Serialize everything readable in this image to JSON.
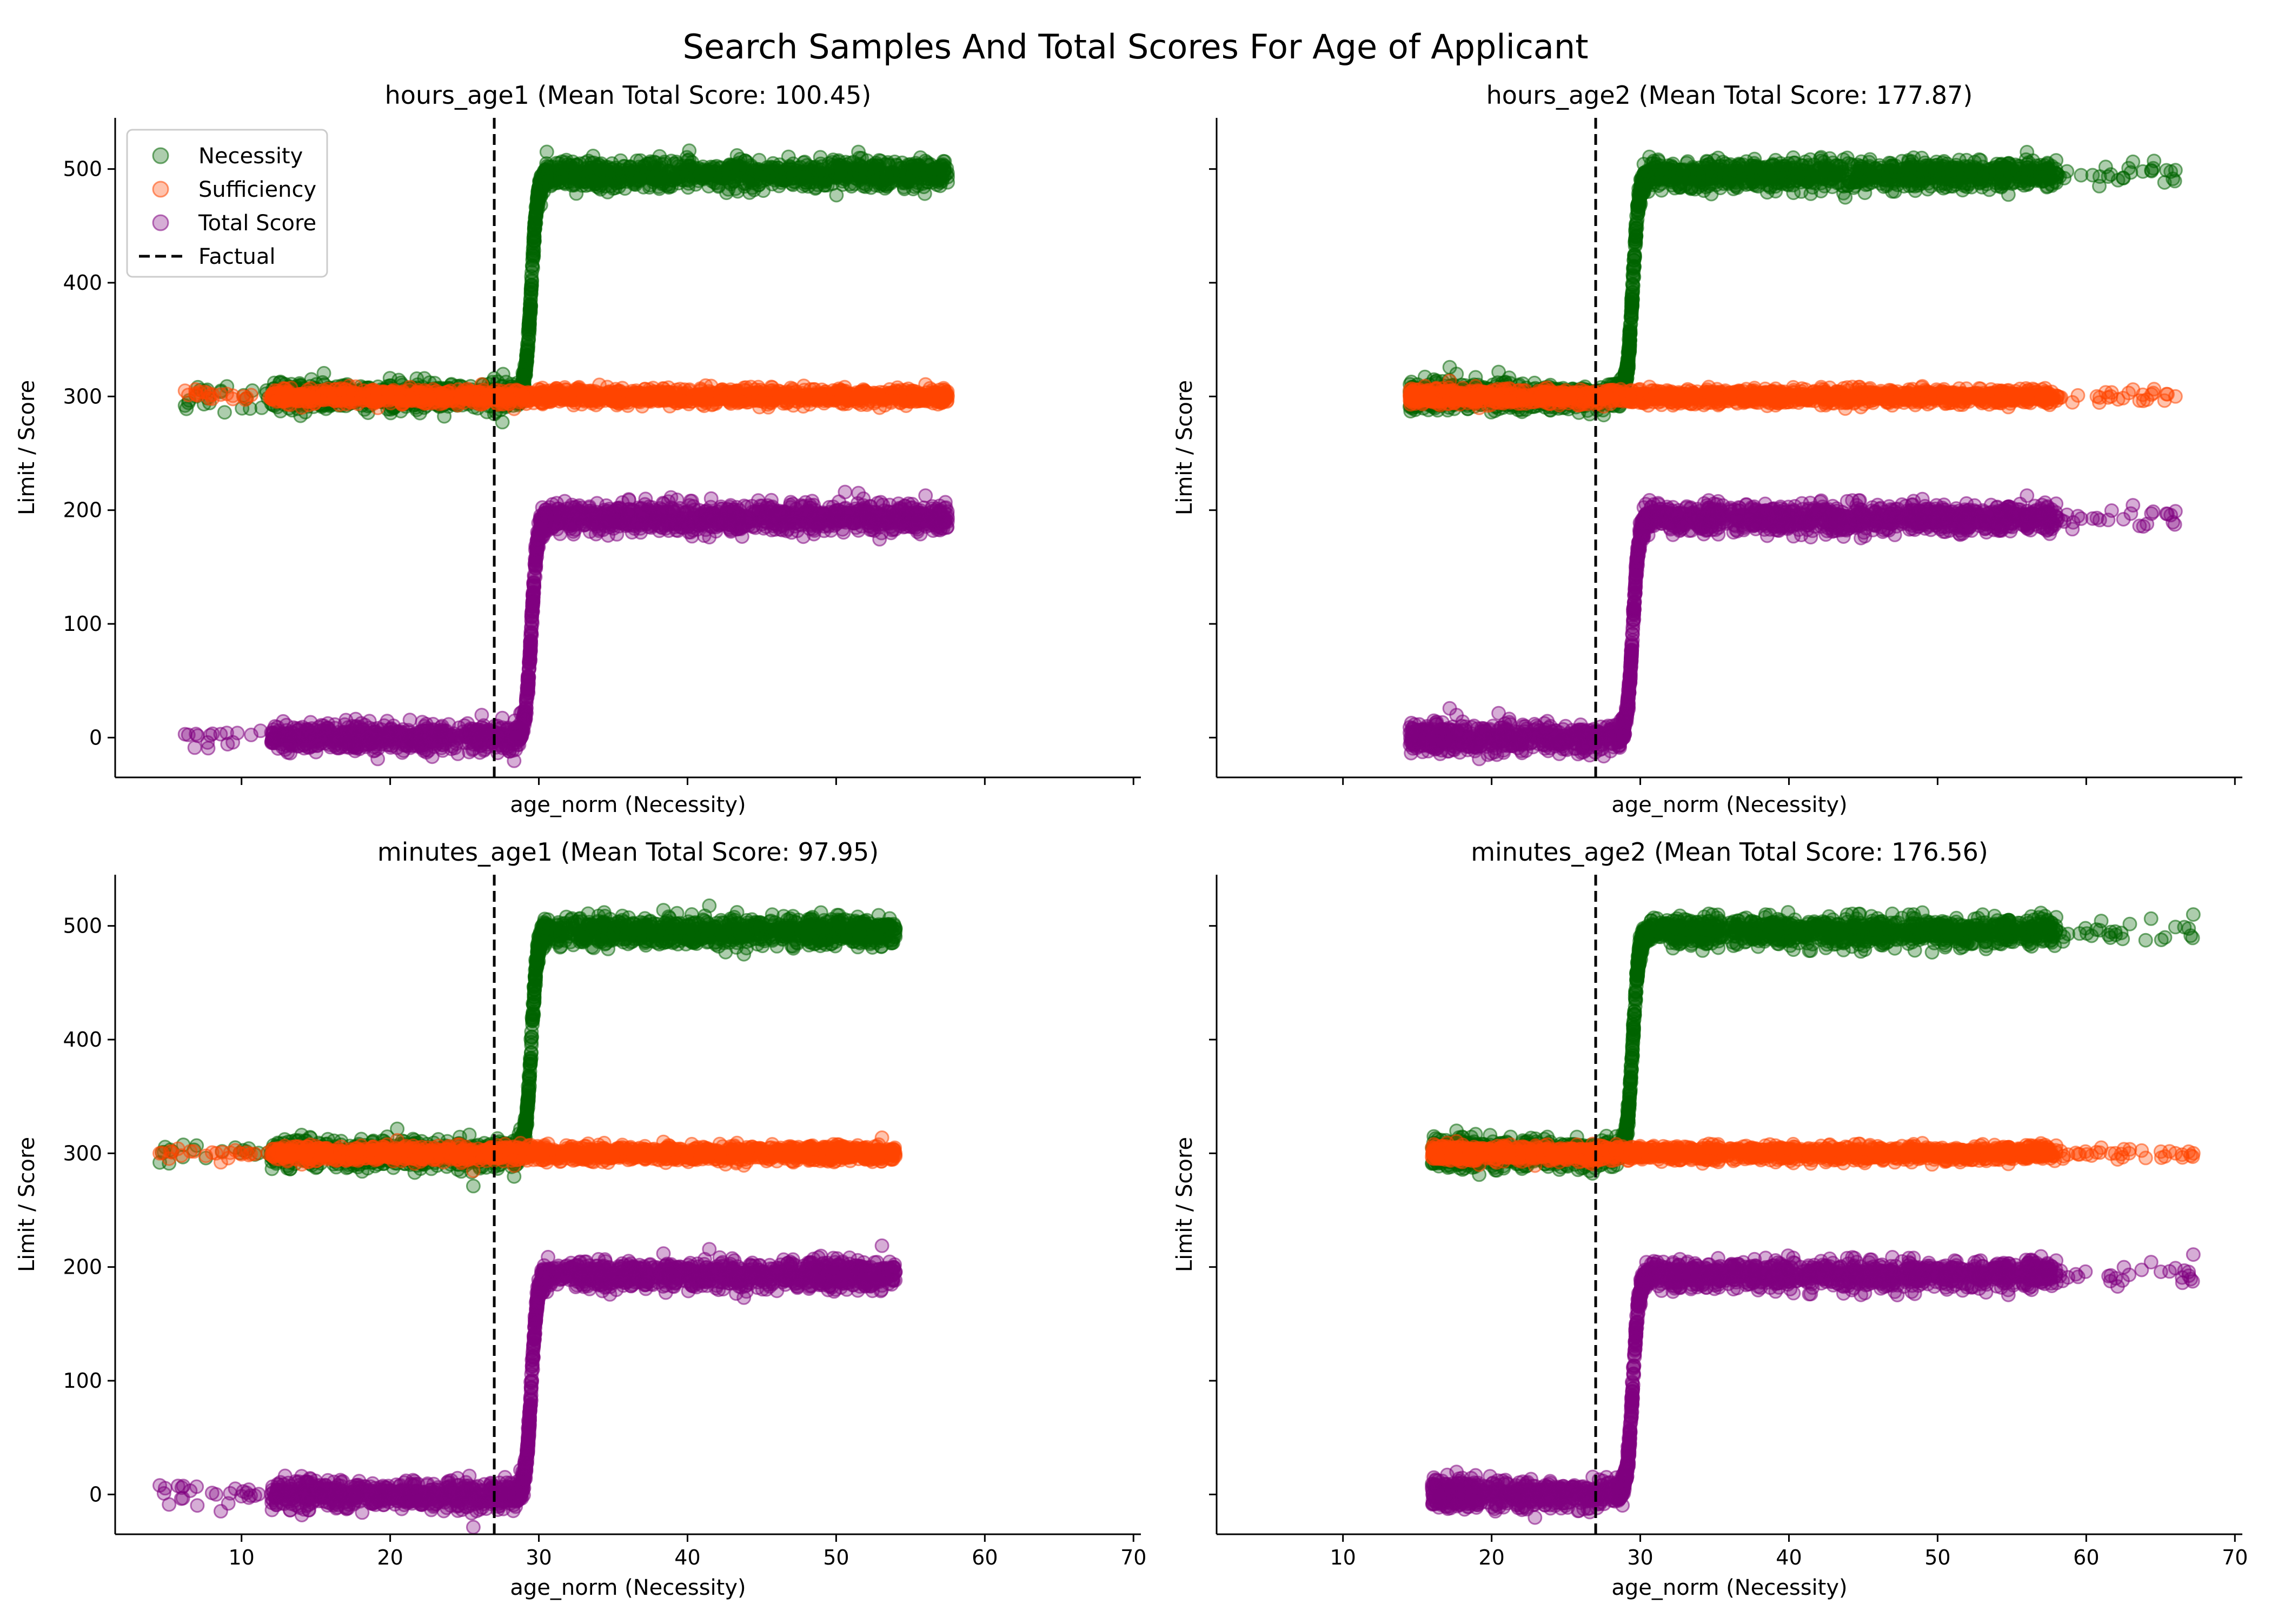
{
  "figure": {
    "title": "Search Samples And Total Scores For Age of Applicant"
  },
  "colors": {
    "necessity": "#006400",
    "sufficiency": "#FF4500",
    "total": "#800080",
    "factual": "#000000"
  },
  "chart_data": [
    {
      "type": "scatter",
      "title": "hours_age1 (Mean Total Score: 100.45)",
      "xlabel": "age_norm (Necessity)",
      "ylabel": "Limit / Score",
      "xlim": [
        1.5,
        70.5
      ],
      "ylim": [
        -35,
        545
      ],
      "xticks": [
        10,
        20,
        30,
        40,
        50,
        60,
        70
      ],
      "yticks": [
        0,
        100,
        200,
        300,
        400,
        500
      ],
      "x_tick_labels_shown": false,
      "factual_x": 27,
      "legend": {
        "position": "top-left",
        "entries": [
          "Necessity",
          "Sufficiency",
          "Total Score",
          "Factual"
        ]
      },
      "series": [
        {
          "name": "Necessity",
          "low_level": 300,
          "high_level": 495,
          "x_min": 6.2,
          "x_max": 57.5,
          "transition_start": 28.5,
          "transition_end": 30.5,
          "outliers": [
            [
              51.5,
              515
            ],
            [
              52.3,
              502
            ],
            [
              53.0,
              507
            ],
            [
              57.5,
              493
            ],
            [
              6.2,
              292
            ]
          ]
        },
        {
          "name": "Sufficiency",
          "level": 300,
          "x_min": 6.2,
          "x_max": 57.5,
          "outliers": [
            [
              6.2,
              305
            ],
            [
              57.5,
              300
            ]
          ]
        },
        {
          "name": "Total Score",
          "low_level": 0,
          "high_level": 193,
          "x_min": 6.2,
          "x_max": 57.5,
          "transition_start": 28.5,
          "transition_end": 30.5,
          "outliers": [
            [
              6.2,
              3
            ],
            [
              51.5,
              215
            ],
            [
              52.3,
              203
            ],
            [
              53.0,
              207
            ],
            [
              57.5,
              193
            ]
          ]
        }
      ]
    },
    {
      "type": "scatter",
      "title": "hours_age2 (Mean Total Score: 177.87)",
      "xlabel": "age_norm (Necessity)",
      "ylabel": "Limit / Score",
      "xlim": [
        1.5,
        70.5
      ],
      "ylim": [
        -35,
        545
      ],
      "xticks": [
        10,
        20,
        30,
        40,
        50,
        60,
        70
      ],
      "yticks": [
        0,
        100,
        200,
        300,
        400,
        500
      ],
      "x_tick_labels_shown": false,
      "factual_x": 27,
      "legend": null,
      "series": [
        {
          "name": "Necessity",
          "low_level": 300,
          "high_level": 495,
          "x_min": 14.5,
          "x_max": 66.0,
          "transition_start": 28.5,
          "transition_end": 30.5,
          "outliers": [
            [
              63.0,
              497
            ],
            [
              66.0,
              499
            ],
            [
              62.5,
              492
            ],
            [
              14.5,
              291
            ]
          ]
        },
        {
          "name": "Sufficiency",
          "level": 300,
          "x_min": 14.5,
          "x_max": 66.0,
          "outliers": [
            [
              14.5,
              300
            ],
            [
              66.0,
              300
            ]
          ]
        },
        {
          "name": "Total Score",
          "low_level": 0,
          "high_level": 193,
          "x_min": 14.5,
          "x_max": 66.0,
          "transition_start": 28.5,
          "transition_end": 30.5,
          "outliers": [
            [
              14.5,
              9
            ],
            [
              63.0,
              197
            ],
            [
              66.0,
              199
            ],
            [
              62.5,
              192
            ]
          ]
        }
      ]
    },
    {
      "type": "scatter",
      "title": "minutes_age1 (Mean Total Score: 97.95)",
      "xlabel": "age_norm (Necessity)",
      "ylabel": "Limit / Score",
      "xlim": [
        1.5,
        70.5
      ],
      "ylim": [
        -35,
        545
      ],
      "xticks": [
        10,
        20,
        30,
        40,
        50,
        60,
        70
      ],
      "yticks": [
        0,
        100,
        200,
        300,
        400,
        500
      ],
      "x_tick_labels_shown": true,
      "factual_x": 27,
      "legend": null,
      "series": [
        {
          "name": "Necessity",
          "low_level": 300,
          "high_level": 495,
          "x_min": 4.5,
          "x_max": 54.0,
          "transition_start": 28.5,
          "transition_end": 30.5,
          "outliers": [
            [
              51.5,
              499
            ],
            [
              52.2,
              496
            ],
            [
              53.8,
              488
            ],
            [
              4.5,
              292
            ]
          ]
        },
        {
          "name": "Sufficiency",
          "level": 300,
          "x_min": 4.5,
          "x_max": 54.0,
          "outliers": [
            [
              4.5,
              300
            ],
            [
              53.8,
              300
            ]
          ]
        },
        {
          "name": "Total Score",
          "low_level": 0,
          "high_level": 193,
          "x_min": 4.5,
          "x_max": 54.0,
          "transition_start": 28.5,
          "transition_end": 30.5,
          "outliers": [
            [
              4.5,
              8
            ],
            [
              51.5,
              199
            ],
            [
              52.2,
              184
            ],
            [
              53.0,
              179
            ],
            [
              53.8,
              188
            ]
          ]
        }
      ]
    },
    {
      "type": "scatter",
      "title": "minutes_age2 (Mean Total Score: 176.56)",
      "xlabel": "age_norm (Necessity)",
      "ylabel": "Limit / Score",
      "xlim": [
        1.5,
        70.5
      ],
      "ylim": [
        -35,
        545
      ],
      "xticks": [
        10,
        20,
        30,
        40,
        50,
        60,
        70
      ],
      "yticks": [
        0,
        100,
        200,
        300,
        400,
        500
      ],
      "x_tick_labels_shown": true,
      "factual_x": 27,
      "legend": null,
      "series": [
        {
          "name": "Necessity",
          "low_level": 300,
          "high_level": 495,
          "x_min": 16.0,
          "x_max": 67.2,
          "transition_start": 28.5,
          "transition_end": 30.5,
          "outliers": [
            [
              66.0,
              499
            ],
            [
              67.2,
              510
            ],
            [
              61.5,
              492
            ],
            [
              16.0,
              291
            ]
          ]
        },
        {
          "name": "Sufficiency",
          "level": 300,
          "x_min": 16.0,
          "x_max": 67.2,
          "outliers": [
            [
              16.0,
              297
            ],
            [
              66.0,
              300
            ],
            [
              67.2,
              300
            ]
          ]
        },
        {
          "name": "Total Score",
          "low_level": 0,
          "high_level": 193,
          "x_min": 16.0,
          "x_max": 67.2,
          "transition_start": 28.5,
          "transition_end": 30.5,
          "outliers": [
            [
              16.0,
              7
            ],
            [
              66.0,
              199
            ],
            [
              67.2,
              211
            ],
            [
              61.5,
              192
            ]
          ]
        }
      ]
    }
  ]
}
